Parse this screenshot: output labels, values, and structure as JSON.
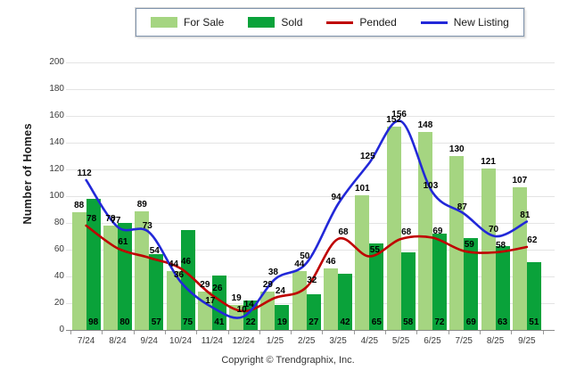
{
  "axis": {
    "ylabel": "Number of Homes",
    "ymin": 0,
    "ymax": 200,
    "ystep": 20
  },
  "footer": {
    "text": "Copyright © Trendgraphix, Inc."
  },
  "chart_data": {
    "type": "combo",
    "title": "",
    "xlabel": "",
    "ylabel": "Number of Homes",
    "ylim": [
      0,
      200
    ],
    "ytick_step": 20,
    "grid": true,
    "legend_position": "top",
    "categories": [
      "7/24",
      "8/24",
      "9/24",
      "10/24",
      "11/24",
      "12/24",
      "1/25",
      "2/25",
      "3/25",
      "4/25",
      "5/25",
      "6/25",
      "7/25",
      "8/25",
      "9/25"
    ],
    "series": [
      {
        "name": "For Sale",
        "type": "bar",
        "color": "#a5d581",
        "values": [
          88,
          78,
          89,
          44,
          29,
          19,
          29,
          44,
          46,
          101,
          152,
          148,
          130,
          121,
          107
        ]
      },
      {
        "name": "Sold",
        "type": "bar",
        "color": "#0aa23a",
        "values": [
          98,
          80,
          57,
          75,
          41,
          22,
          19,
          27,
          42,
          65,
          58,
          72,
          69,
          63,
          51
        ]
      },
      {
        "name": "Pended",
        "type": "line",
        "color": "#bf0000",
        "values": [
          78,
          61,
          54,
          46,
          26,
          14,
          24,
          32,
          68,
          55,
          68,
          69,
          59,
          58,
          62
        ]
      },
      {
        "name": "New Listing",
        "type": "line",
        "color": "#2228d8",
        "values": [
          112,
          77,
          73,
          36,
          17,
          10,
          38,
          50,
          94,
          125,
          156,
          103,
          87,
          70,
          81
        ]
      }
    ]
  }
}
